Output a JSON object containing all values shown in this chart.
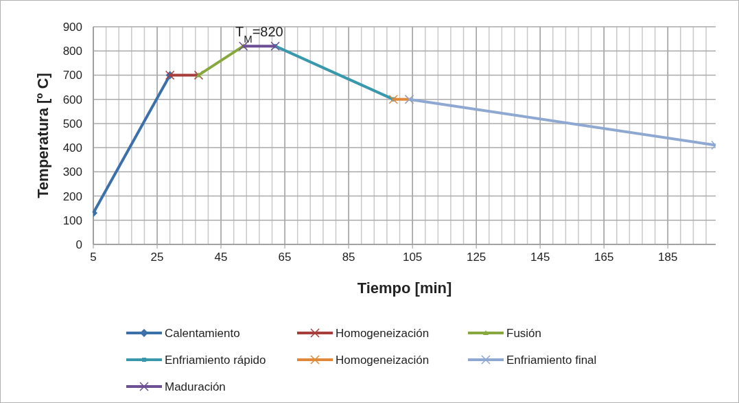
{
  "chart_data": {
    "type": "line",
    "xlabel": "Tiempo [min]",
    "ylabel": "Temperatura [º C]",
    "xlim": [
      5,
      200
    ],
    "ylim": [
      0,
      900
    ],
    "xticks": [
      5,
      {
        "value": 9,
        "label": null
      },
      {
        "value": 13,
        "label": null
      },
      {
        "value": 17,
        "label": null
      },
      {
        "value": 21,
        "label": null
      },
      25,
      {
        "value": 29,
        "label": null
      },
      {
        "value": 33,
        "label": null
      },
      {
        "value": 37,
        "label": null
      },
      {
        "value": 41,
        "label": null
      },
      45,
      {
        "value": 49,
        "label": null
      },
      {
        "value": 53,
        "label": null
      },
      {
        "value": 57,
        "label": null
      },
      {
        "value": 61,
        "label": null
      },
      65,
      {
        "value": 69,
        "label": null
      },
      {
        "value": 73,
        "label": null
      },
      {
        "value": 77,
        "label": null
      },
      {
        "value": 81,
        "label": null
      },
      85,
      {
        "value": 89,
        "label": null
      },
      {
        "value": 93,
        "label": null
      },
      {
        "value": 97,
        "label": null
      },
      {
        "value": 101,
        "label": null
      },
      105,
      {
        "value": 109,
        "label": null
      },
      {
        "value": 113,
        "label": null
      },
      {
        "value": 117,
        "label": null
      },
      {
        "value": 121,
        "label": null
      },
      125,
      {
        "value": 129,
        "label": null
      },
      {
        "value": 133,
        "label": null
      },
      {
        "value": 137,
        "label": null
      },
      {
        "value": 141,
        "label": null
      },
      145,
      {
        "value": 149,
        "label": null
      },
      {
        "value": 153,
        "label": null
      },
      {
        "value": 157,
        "label": null
      },
      {
        "value": 161,
        "label": null
      },
      165,
      {
        "value": 169,
        "label": null
      },
      {
        "value": 173,
        "label": null
      },
      {
        "value": 177,
        "label": null
      },
      {
        "value": 181,
        "label": null
      },
      185,
      {
        "value": 189,
        "label": null
      },
      {
        "value": 193,
        "label": null
      },
      {
        "value": 197,
        "label": null
      }
    ],
    "yticks": [
      0,
      100,
      200,
      300,
      400,
      500,
      600,
      700,
      800,
      900
    ],
    "grid": true,
    "legend": "bottom",
    "line_style": "solid",
    "series": [
      {
        "name": "Calentamiento",
        "color": "#3c70ab",
        "marker": "diamond",
        "x": [
          5,
          29
        ],
        "values": [
          130,
          700
        ]
      },
      {
        "name": "Homogeneización",
        "color": "#a83e3b",
        "marker": "cross",
        "x": [
          29,
          38
        ],
        "values": [
          700,
          700
        ]
      },
      {
        "name": "Fusión",
        "color": "#86a83e",
        "marker": "triangle",
        "x": [
          38,
          52
        ],
        "values": [
          700,
          820
        ]
      },
      {
        "name": "Enfriamiento rápido",
        "color": "#3a98ad",
        "marker": "square",
        "x": [
          62,
          99
        ],
        "values": [
          820,
          600
        ]
      },
      {
        "name": "Homogeneización",
        "color": "#e0893a",
        "marker": "cross",
        "x": [
          99,
          104
        ],
        "values": [
          600,
          600
        ]
      },
      {
        "name": "Enfriamiento final",
        "color": "#8ea8d2",
        "marker": "cross",
        "x": [
          104,
          200
        ],
        "values": [
          600,
          410
        ]
      },
      {
        "name": "Maduración",
        "color": "#6d4f96",
        "marker": "cross",
        "x": [
          52,
          62
        ],
        "values": [
          820,
          820
        ]
      }
    ],
    "annotations": [
      {
        "text": "T$_{M}$=820",
        "x": 57,
        "y": 820
      }
    ]
  }
}
